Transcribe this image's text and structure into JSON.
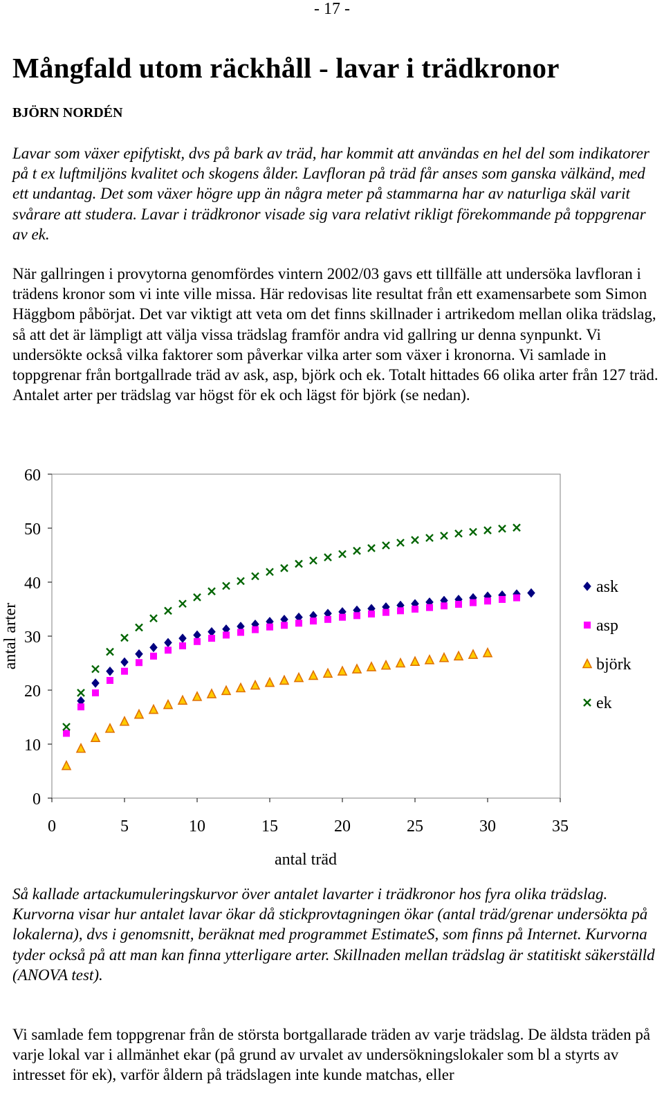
{
  "page": {
    "number": "- 17 -",
    "title": "Mångfald utom räckhåll - lavar i trädkronor",
    "author": "BJÖRN NORDÉN"
  },
  "intro_text": "Lavar som växer epifytiskt, dvs på bark av träd, har kommit att användas en hel del som indikatorer på t ex luftmiljöns kvalitet och skogens ålder. Lavfloran på träd får anses som ganska välkänd, med ett undantag. Det som växer högre upp än några meter på stammarna har av naturliga skäl varit svårare att studera. Lavar i trädkronor visade sig vara relativt rikligt förekommande på toppgrenar av ek.",
  "body_text_1": "När gallringen i provytorna genomfördes vintern 2002/03 gavs ett tillfälle att undersöka lavfloran i trädens kronor som vi inte ville missa. Här redovisas lite resultat från ett examensarbete som Simon Häggbom påbörjat. Det var viktigt att veta om det finns skillnader i artrikedom mellan olika trädslag, så att det är lämpligt att välja vissa trädslag framför andra vid gallring ur denna synpunkt. Vi undersökte också vilka faktorer som påverkar vilka arter som växer i kronorna. Vi samlade in toppgrenar från bortgallrade träd av ask, asp, björk och ek. Totalt hittades 66 olika arter från 127 träd. Antalet arter per trädslag var högst för ek och lägst för björk (se nedan).",
  "caption_text": "Så kallade artackumuleringskurvor över antalet lavarter i trädkronor hos fyra olika trädslag. Kurvorna visar hur antalet lavar ökar då stickprovtagningen ökar (antal träd/grenar undersökta på lokalerna), dvs i genomsnitt, beräknat med programmet EstimateS, som finns på Internet. Kurvorna tyder också på att man kan finna ytterligare arter. Skillnaden mellan trädslag är statitiskt säkerställd (ANOVA test).",
  "body_text_2": "Vi samlade fem toppgrenar från de största bortgallarade träden av varje trädslag. De äldsta träden på varje lokal var i allmänhet ekar (på grund av urvalet av undersökningslokaler som bl a styrts av intresset för ek), varför åldern på trädslagen inte kunde matchas, eller",
  "chart_data": {
    "type": "scatter",
    "xlabel": "antal träd",
    "ylabel": "antal arter",
    "xlim": [
      0,
      35
    ],
    "ylim": [
      0,
      60
    ],
    "xticks": [
      0,
      5,
      10,
      15,
      20,
      25,
      30,
      35
    ],
    "yticks": [
      0,
      10,
      20,
      30,
      40,
      50,
      60
    ],
    "grid": false,
    "legend_position": "right",
    "series": [
      {
        "name": "ask",
        "marker": "diamond",
        "color": "#000080",
        "x": [
          2,
          3,
          4,
          5,
          6,
          7,
          8,
          9,
          10,
          11,
          12,
          13,
          14,
          15,
          16,
          17,
          18,
          19,
          20,
          21,
          22,
          23,
          24,
          25,
          26,
          27,
          28,
          29,
          30,
          31,
          32,
          33
        ],
        "y": [
          18.0,
          21.3,
          23.5,
          25.2,
          26.7,
          27.9,
          28.8,
          29.6,
          30.2,
          30.8,
          31.3,
          31.8,
          32.2,
          32.7,
          33.1,
          33.5,
          33.8,
          34.2,
          34.5,
          34.8,
          35.1,
          35.4,
          35.7,
          36.0,
          36.3,
          36.6,
          36.8,
          37.1,
          37.4,
          37.6,
          37.8,
          38.0
        ]
      },
      {
        "name": "asp",
        "marker": "square",
        "color": "#ff00ff",
        "x": [
          1,
          2,
          3,
          4,
          5,
          6,
          7,
          8,
          9,
          10,
          11,
          12,
          13,
          14,
          15,
          16,
          17,
          18,
          19,
          20,
          21,
          22,
          23,
          24,
          25,
          26,
          27,
          28,
          29,
          30,
          31,
          32
        ],
        "y": [
          12.0,
          16.9,
          19.5,
          21.8,
          23.5,
          25.1,
          26.3,
          27.4,
          28.2,
          29.0,
          29.6,
          30.2,
          30.7,
          31.2,
          31.7,
          32.0,
          32.4,
          32.8,
          33.1,
          33.5,
          33.8,
          34.1,
          34.4,
          34.7,
          35.0,
          35.3,
          35.6,
          35.9,
          36.2,
          36.5,
          36.8,
          37.1
        ]
      },
      {
        "name": "björk",
        "marker": "triangle",
        "color": "#ffcc00",
        "x": [
          1,
          2,
          3,
          4,
          5,
          6,
          7,
          8,
          9,
          10,
          11,
          12,
          13,
          14,
          15,
          16,
          17,
          18,
          19,
          20,
          21,
          22,
          23,
          24,
          25,
          26,
          27,
          28,
          29,
          30
        ],
        "y": [
          6.0,
          9.2,
          11.2,
          12.9,
          14.2,
          15.5,
          16.4,
          17.3,
          18.1,
          18.8,
          19.3,
          19.9,
          20.4,
          20.9,
          21.4,
          21.8,
          22.3,
          22.7,
          23.1,
          23.5,
          23.9,
          24.3,
          24.6,
          25.0,
          25.3,
          25.6,
          26.0,
          26.3,
          26.6,
          26.9
        ]
      },
      {
        "name": "ek",
        "marker": "x",
        "color": "#006400",
        "x": [
          1,
          2,
          3,
          4,
          5,
          6,
          7,
          8,
          9,
          10,
          11,
          12,
          13,
          14,
          15,
          16,
          17,
          18,
          19,
          20,
          21,
          22,
          23,
          24,
          25,
          26,
          27,
          28,
          29,
          30,
          31,
          32
        ],
        "y": [
          13.2,
          19.5,
          23.9,
          27.1,
          29.7,
          31.6,
          33.3,
          34.7,
          36.0,
          37.2,
          38.3,
          39.3,
          40.2,
          41.1,
          41.9,
          42.6,
          43.4,
          44.0,
          44.6,
          45.2,
          45.8,
          46.3,
          46.8,
          47.3,
          47.8,
          48.2,
          48.6,
          49.0,
          49.3,
          49.6,
          49.9,
          50.1
        ]
      }
    ]
  }
}
